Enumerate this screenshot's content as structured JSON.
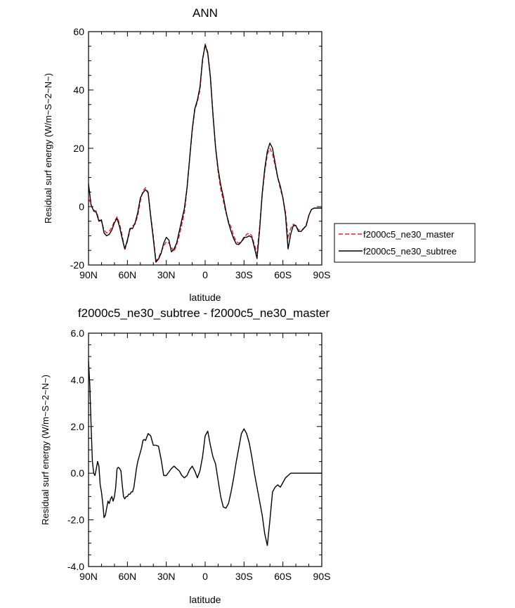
{
  "colors": {
    "master": "#e8202a",
    "subtree": "#000000",
    "axis": "#000000"
  },
  "chart_data": [
    {
      "type": "line",
      "title": "ANN",
      "xlabel": "latitude",
      "ylabel": "Residual surf energy (W/m~S~2~N~)",
      "xlim": [
        90,
        -90
      ],
      "ylim": [
        -20,
        60
      ],
      "xticks": [
        90,
        60,
        30,
        0,
        -30,
        -60,
        -90
      ],
      "xtick_labels": [
        "90N",
        "60N",
        "30N",
        "0",
        "30S",
        "60S",
        "90S"
      ],
      "yticks": [
        -20,
        0,
        20,
        40,
        60
      ],
      "ytick_labels": [
        "-20",
        "0",
        "20",
        "40",
        "60"
      ],
      "legend": {
        "placement": "right",
        "entries": [
          "f2000c5_ne30_master",
          "f2000c5_ne30_subtree"
        ]
      },
      "series": [
        {
          "name": "f2000c5_ne30_master",
          "style": "dashed",
          "color": "#e8202a",
          "x": [
            90,
            88,
            86,
            84,
            82,
            80,
            78,
            76,
            74,
            72,
            70,
            68,
            66,
            64,
            62,
            60,
            58,
            56,
            54,
            52,
            50,
            48,
            46,
            44,
            42,
            40,
            38,
            36,
            34,
            32,
            30,
            28,
            26,
            24,
            22,
            20,
            18,
            16,
            14,
            12,
            10,
            8,
            6,
            4,
            2,
            0,
            -2,
            -4,
            -6,
            -8,
            -10,
            -12,
            -14,
            -16,
            -18,
            -20,
            -22,
            -24,
            -26,
            -28,
            -30,
            -32,
            -34,
            -36,
            -38,
            -40,
            -42,
            -44,
            -46,
            -48,
            -50,
            -52,
            -54,
            -56,
            -58,
            -60,
            -62,
            -64,
            -66,
            -68,
            -70,
            -72,
            -74,
            -76,
            -78,
            -80,
            -82,
            -84,
            -86,
            -88,
            -90
          ],
          "values": [
            3,
            0.5,
            -1.2,
            -1.5,
            -4.5,
            -5,
            -8,
            -9,
            -8.5,
            -7,
            -5,
            -3.5,
            -6,
            -10,
            -14.8,
            -12,
            -8,
            -6.5,
            -6,
            -3,
            2,
            5.5,
            6.5,
            5,
            -3,
            -10,
            -18.5,
            -17.5,
            -15.5,
            -13.5,
            -12,
            -12.5,
            -14,
            -15.5,
            -13,
            -10,
            -6,
            -2,
            6,
            16,
            26,
            33,
            36,
            40,
            50,
            55.8,
            53,
            45,
            32,
            20,
            12,
            6,
            2,
            -2,
            -5,
            -7,
            -10,
            -12,
            -12.5,
            -12,
            -11,
            -9.5,
            -9,
            -10,
            -13,
            -16,
            -7,
            4,
            12,
            18,
            20,
            18,
            14,
            10,
            6,
            3,
            -2,
            -11,
            -7.5,
            -6,
            -6.5,
            -8,
            -8,
            -7.5,
            -6,
            -3,
            -1,
            -0.5,
            -0.5,
            -0.5,
            -0.5
          ]
        },
        {
          "name": "f2000c5_ne30_subtree",
          "style": "solid",
          "color": "#000000",
          "x": [
            90,
            88,
            86,
            84,
            82,
            80,
            78,
            76,
            74,
            72,
            70,
            68,
            66,
            64,
            62,
            60,
            58,
            56,
            54,
            52,
            50,
            48,
            46,
            44,
            42,
            40,
            38,
            36,
            34,
            32,
            30,
            28,
            26,
            24,
            22,
            20,
            18,
            16,
            14,
            12,
            10,
            8,
            6,
            4,
            2,
            0,
            -2,
            -4,
            -6,
            -8,
            -10,
            -12,
            -14,
            -16,
            -18,
            -20,
            -22,
            -24,
            -26,
            -28,
            -30,
            -32,
            -34,
            -36,
            -38,
            -40,
            -42,
            -44,
            -46,
            -48,
            -50,
            -52,
            -54,
            -56,
            -58,
            -60,
            -62,
            -64,
            -66,
            -68,
            -70,
            -72,
            -74,
            -76,
            -78,
            -80,
            -82,
            -84,
            -86,
            -88,
            -90
          ],
          "values": [
            7.8,
            0.5,
            -1.5,
            -2,
            -5,
            -4.5,
            -9,
            -10,
            -9.5,
            -8,
            -5.5,
            -4,
            -7,
            -11,
            -14.5,
            -11.5,
            -7.5,
            -7.5,
            -5.5,
            -2,
            3,
            4.8,
            5.8,
            4.8,
            -3.5,
            -11,
            -19,
            -18,
            -16,
            -12.5,
            -10.5,
            -11.5,
            -15.5,
            -14.5,
            -12.5,
            -8.5,
            -4.5,
            -0.5,
            6.5,
            16.5,
            26.5,
            33.5,
            36.5,
            41,
            50.5,
            55.4,
            52.5,
            44.5,
            31.5,
            20.5,
            13,
            7.5,
            3.5,
            -1.5,
            -5.5,
            -8.5,
            -11,
            -12.8,
            -13,
            -12,
            -10.5,
            -10.5,
            -10,
            -10.5,
            -14,
            -17.8,
            -8,
            4.5,
            13,
            19,
            21.8,
            20,
            15,
            10,
            7,
            3,
            -3,
            -14.5,
            -9.5,
            -6.5,
            -6.5,
            -8.5,
            -8.5,
            -7.5,
            -6.5,
            -3,
            -1,
            -0.5,
            -0.5,
            -0.5,
            -0.5
          ]
        }
      ]
    },
    {
      "type": "line",
      "title": "f2000c5_ne30_subtree - f2000c5_ne30_master",
      "xlabel": "latitude",
      "ylabel": "Residual surf energy (W/m~S~2~N~)",
      "xlim": [
        90,
        -90
      ],
      "ylim": [
        -4,
        6
      ],
      "xticks": [
        90,
        60,
        30,
        0,
        -30,
        -60,
        -90
      ],
      "xtick_labels": [
        "90N",
        "60N",
        "30N",
        "0",
        "30S",
        "60S",
        "90S"
      ],
      "yticks": [
        -4,
        -2,
        0,
        2,
        4,
        6
      ],
      "ytick_labels": [
        "-4.0",
        "-2.0",
        "0.0",
        "2.0",
        "4.0",
        "6.0"
      ],
      "series": [
        {
          "name": "f2000c5_ne30_subtree - f2000c5_ne30_master",
          "style": "solid",
          "color": "#000000",
          "x": [
            90,
            89,
            88,
            87,
            86,
            85,
            84,
            83,
            82,
            81,
            80,
            79,
            78,
            77,
            76,
            75,
            74,
            73,
            72,
            71,
            70,
            69,
            68,
            67,
            66,
            65,
            64,
            63,
            62,
            61,
            60,
            59,
            58,
            57,
            56,
            55,
            54,
            53,
            52,
            51,
            50,
            49,
            48,
            47,
            46,
            45,
            44,
            42,
            40,
            38,
            36,
            34,
            32,
            30,
            28,
            26,
            24,
            22,
            20,
            18,
            16,
            14,
            12,
            10,
            8,
            6,
            4,
            2,
            0,
            -2,
            -4,
            -6,
            -8,
            -10,
            -12,
            -14,
            -16,
            -18,
            -20,
            -22,
            -24,
            -26,
            -28,
            -30,
            -32,
            -34,
            -36,
            -38,
            -40,
            -42,
            -44,
            -46,
            -48,
            -50,
            -52,
            -54,
            -56,
            -58,
            -60,
            -62,
            -64,
            -65,
            -66,
            -68,
            -70,
            -72,
            -74,
            -76,
            -78,
            -80,
            -82,
            -84,
            -86,
            -88,
            -90
          ],
          "values": [
            4.8,
            3.8,
            2.0,
            0.5,
            0.0,
            -0.1,
            0.2,
            0.5,
            0.3,
            -0.5,
            -0.8,
            -1.3,
            -1.9,
            -1.8,
            -1.5,
            -1.2,
            -1.3,
            -1.1,
            -1.0,
            -1.2,
            -1.0,
            -0.6,
            0.2,
            0.25,
            0.2,
            0.1,
            -0.5,
            -1.0,
            -1.1,
            -1.0,
            -1.0,
            -0.9,
            -0.9,
            -0.8,
            -0.8,
            -0.6,
            -0.2,
            0.2,
            0.5,
            0.7,
            0.9,
            1.1,
            1.4,
            1.45,
            1.4,
            1.55,
            1.7,
            1.6,
            1.2,
            1.2,
            1.15,
            0.6,
            -0.1,
            -0.1,
            0.05,
            0.2,
            0.3,
            0.2,
            0.1,
            -0.1,
            -0.2,
            -0.1,
            0.15,
            0.3,
            0.1,
            -0.2,
            0.1,
            0.7,
            1.6,
            1.8,
            1.2,
            0.7,
            0.4,
            -0.3,
            -1.0,
            -1.45,
            -1.5,
            -1.3,
            -0.8,
            -0.2,
            0.5,
            1.1,
            1.7,
            1.9,
            1.7,
            1.3,
            0.7,
            0.0,
            -0.6,
            -1.2,
            -1.8,
            -2.6,
            -3.1,
            -2.0,
            -0.8,
            -0.6,
            -0.5,
            -0.6,
            -0.4,
            -0.2,
            -0.1,
            -0.05,
            0.0,
            0.0,
            0.0,
            0.0,
            0.0,
            0.0,
            0.0,
            0.0,
            0.0,
            0.0,
            0.0,
            0.0,
            0.0
          ]
        }
      ]
    }
  ]
}
